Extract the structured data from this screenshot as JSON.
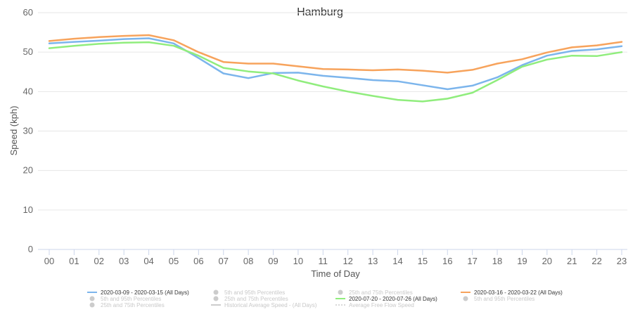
{
  "chart_data": {
    "type": "line",
    "title": "Hamburg",
    "xlabel": "Time of Day",
    "ylabel": "Speed (kph)",
    "ylim": [
      0,
      60
    ],
    "yticks": [
      "0",
      "10",
      "20",
      "30",
      "40",
      "50",
      "60"
    ],
    "grid": true,
    "categories": [
      "00",
      "01",
      "02",
      "03",
      "04",
      "05",
      "06",
      "07",
      "08",
      "09",
      "10",
      "11",
      "12",
      "13",
      "14",
      "15",
      "16",
      "17",
      "18",
      "19",
      "20",
      "21",
      "22",
      "23"
    ],
    "series": [
      {
        "name": "2020-03-09 - 2020-03-15 (All Days)",
        "color": "#7cb5ec",
        "values": [
          52.2,
          52.6,
          52.9,
          53.3,
          53.5,
          52.2,
          48.5,
          44.6,
          43.4,
          44.7,
          44.8,
          44.0,
          43.5,
          42.9,
          42.6,
          41.6,
          40.6,
          41.5,
          43.6,
          46.7,
          49.1,
          50.3,
          50.7,
          51.5
        ]
      },
      {
        "name": "2020-03-16 - 2020-03-22 (All Days)",
        "color": "#f7a35c",
        "values": [
          52.8,
          53.4,
          53.8,
          54.1,
          54.3,
          53.0,
          50.0,
          47.5,
          47.1,
          47.1,
          46.4,
          45.7,
          45.6,
          45.4,
          45.6,
          45.3,
          44.8,
          45.5,
          47.1,
          48.2,
          49.9,
          51.2,
          51.7,
          52.6
        ]
      },
      {
        "name": "2020-07-20 - 2020-07-26 (All Days)",
        "color": "#90ed7d",
        "values": [
          51.0,
          51.6,
          52.1,
          52.4,
          52.5,
          51.6,
          49.1,
          46.0,
          45.1,
          44.6,
          42.8,
          41.3,
          40.0,
          38.9,
          37.9,
          37.5,
          38.2,
          39.7,
          42.9,
          46.3,
          48.1,
          49.1,
          49.0,
          50.0
        ]
      }
    ],
    "legend": {
      "placement": "bottom",
      "columns": [
        [
          {
            "label": "2020-03-09 - 2020-03-15 (All Days)",
            "color": "#7cb5ec",
            "kind": "line",
            "active": true
          },
          {
            "label": "5th and 95th Percentiles",
            "color": "#cccccc",
            "kind": "dot",
            "active": false
          },
          {
            "label": "25th and 75th Percentiles",
            "color": "#cccccc",
            "kind": "dot",
            "active": false
          }
        ],
        [
          {
            "label": "5th and 95th Percentiles",
            "color": "#cccccc",
            "kind": "dot",
            "active": false
          },
          {
            "label": "25th and 75th Percentiles",
            "color": "#cccccc",
            "kind": "dot",
            "active": false
          },
          {
            "label": "Historical Average Speed - (All Days)",
            "color": "#cccccc",
            "kind": "line",
            "active": false
          }
        ],
        [
          {
            "label": "25th and 75th Percentiles",
            "color": "#cccccc",
            "kind": "dot",
            "active": false
          },
          {
            "label": "2020-07-20 - 2020-07-26 (All Days)",
            "color": "#90ed7d",
            "kind": "line",
            "active": true
          },
          {
            "label": "Average Free Flow Speed",
            "color": "#cccccc",
            "kind": "dash",
            "active": false
          }
        ],
        [
          {
            "label": "2020-03-16 - 2020-03-22 (All Days)",
            "color": "#f7a35c",
            "kind": "line",
            "active": true
          },
          {
            "label": "5th and 95th Percentiles",
            "color": "#cccccc",
            "kind": "dot",
            "active": false
          }
        ]
      ]
    }
  }
}
